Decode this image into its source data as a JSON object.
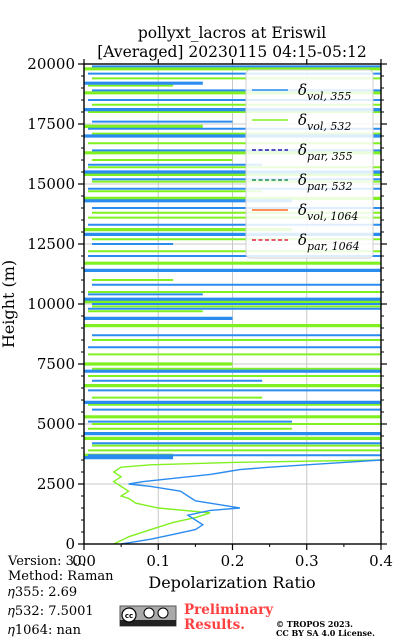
{
  "colors": {
    "vol355": "#2b8cf0",
    "vol532": "#80f020",
    "par355": "#1a1aa8",
    "par532": "#1a8a5a",
    "vol1064": "#ff6a1a",
    "par1064": "#e02040",
    "grid": "#c8c8c8",
    "prelim": "#ff4040"
  },
  "chart_data": {
    "type": "line",
    "title": "pollyxt_lacros at Eriswil",
    "subtitle": "[Averaged] 20230115 04:15-05:12",
    "xlabel": "Depolarization Ratio",
    "ylabel": "Height (m)",
    "xlim": [
      0,
      0.4
    ],
    "ylim": [
      0,
      20000
    ],
    "xticks": [
      "0.0",
      "0.1",
      "0.2",
      "0.3",
      "0.4"
    ],
    "yticks": [
      "0",
      "2500",
      "5000",
      "7500",
      "10000",
      "12500",
      "15000",
      "17500",
      "20000"
    ],
    "grid": true,
    "legend_position": "upper right",
    "legend": [
      {
        "key": "vol355",
        "base": "δ",
        "sub": "vol, 355",
        "style": "solid"
      },
      {
        "key": "vol532",
        "base": "δ",
        "sub": "vol, 532",
        "style": "solid"
      },
      {
        "key": "par355",
        "base": "δ",
        "sub": "par, 355",
        "style": "dashed"
      },
      {
        "key": "par532",
        "base": "δ",
        "sub": "par, 532",
        "style": "dashed"
      },
      {
        "key": "vol1064",
        "base": "δ",
        "sub": "vol, 1064",
        "style": "solid"
      },
      {
        "key": "par1064",
        "base": "δ",
        "sub": "par, 1064",
        "style": "dashed"
      }
    ],
    "series": [
      {
        "key": "vol355",
        "points": [
          [
            0.05,
            0
          ],
          [
            0.09,
            200
          ],
          [
            0.12,
            400
          ],
          [
            0.15,
            600
          ],
          [
            0.16,
            800
          ],
          [
            0.15,
            1000
          ],
          [
            0.14,
            1200
          ],
          [
            0.17,
            1400
          ],
          [
            0.21,
            1500
          ],
          [
            0.19,
            1600
          ],
          [
            0.17,
            1700
          ],
          [
            0.15,
            1800
          ],
          [
            0.14,
            2000
          ],
          [
            0.13,
            2200
          ],
          [
            0.09,
            2400
          ],
          [
            0.06,
            2500
          ],
          [
            0.08,
            2600
          ],
          [
            0.11,
            2700
          ],
          [
            0.14,
            2800
          ],
          [
            0.17,
            2900
          ],
          [
            0.19,
            3000
          ],
          [
            0.21,
            3100
          ],
          [
            0.25,
            3200
          ],
          [
            0.3,
            3300
          ],
          [
            0.35,
            3400
          ],
          [
            0.4,
            3500
          ]
        ],
        "bands": [
          3600,
          3700,
          4200,
          4600,
          5100,
          5600,
          5900,
          6400,
          6800,
          7200,
          8200,
          8700,
          9400,
          9800,
          10000,
          10200,
          10400,
          10800,
          11400,
          12000,
          12500,
          12900,
          13300,
          14000,
          14300,
          14800,
          15200,
          15500,
          15800,
          16400,
          17000,
          17300,
          17600,
          18100,
          18500,
          18900,
          19200,
          19600,
          19900
        ]
      },
      {
        "key": "vol532",
        "points": [
          [
            0.04,
            0
          ],
          [
            0.06,
            300
          ],
          [
            0.09,
            600
          ],
          [
            0.12,
            900
          ],
          [
            0.15,
            1100
          ],
          [
            0.17,
            1300
          ],
          [
            0.1,
            1500
          ],
          [
            0.07,
            1700
          ],
          [
            0.06,
            1900
          ],
          [
            0.05,
            2000
          ],
          [
            0.06,
            2200
          ],
          [
            0.05,
            2400
          ],
          [
            0.04,
            2600
          ],
          [
            0.05,
            2800
          ],
          [
            0.04,
            3000
          ],
          [
            0.05,
            3200
          ],
          [
            0.09,
            3300
          ],
          [
            0.2,
            3400
          ],
          [
            0.4,
            3500
          ]
        ],
        "bands": [
          3700,
          3900,
          4100,
          4400,
          4800,
          5000,
          5300,
          5800,
          6100,
          6600,
          7000,
          7300,
          7500,
          7900,
          8500,
          9100,
          9700,
          9900,
          10100,
          10500,
          11000,
          11700,
          12200,
          12700,
          13100,
          13600,
          13800,
          14400,
          14700,
          15100,
          15400,
          15700,
          16000,
          16300,
          16700,
          17100,
          17400,
          18000,
          18300,
          18800,
          19100,
          19400,
          19800
        ]
      }
    ]
  },
  "footer": {
    "version": "Version: 3.0",
    "method": "Method: Raman",
    "eta355": "𝜂355:   2.69",
    "eta532": "𝜂532: 7.5001",
    "eta1064": "𝜂1064:    nan",
    "license_badge": "cc by sa",
    "preliminary_line1": "Preliminary",
    "preliminary_line2": "Results.",
    "copyright_line1": "© TROPOS 2023.",
    "copyright_line2": "CC BY SA 4.0 License."
  }
}
